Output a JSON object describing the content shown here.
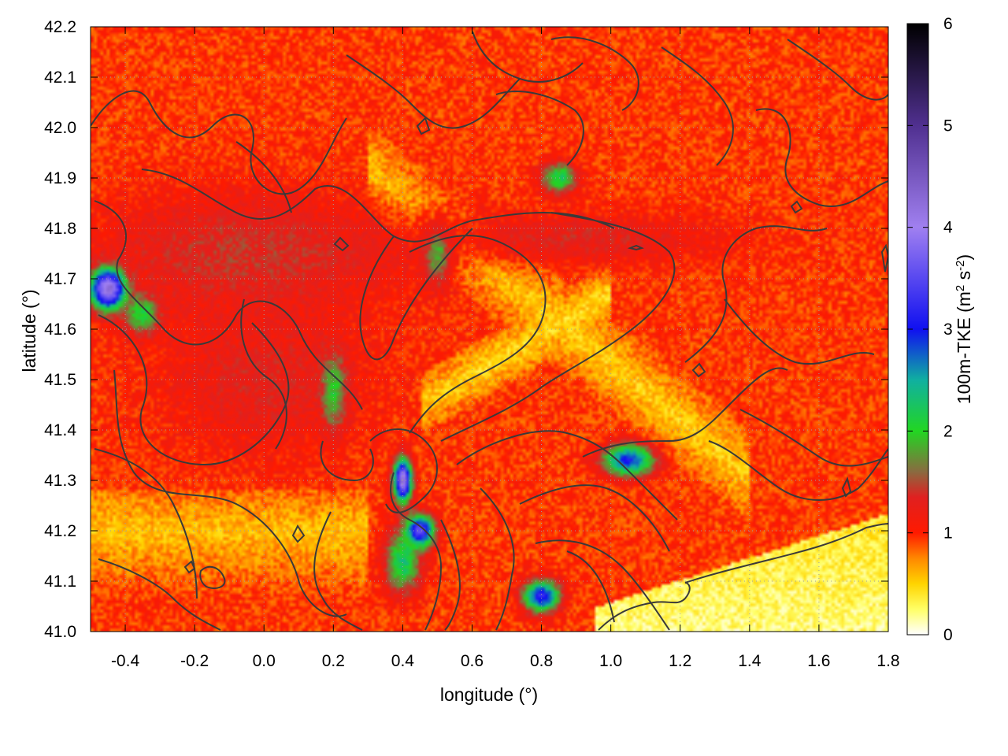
{
  "chart_data": {
    "type": "heatmap",
    "xlabel": "longitude (°)",
    "ylabel": "latitude (°)",
    "xlim": [
      -0.5,
      1.8
    ],
    "ylim": [
      41.0,
      42.2
    ],
    "x_ticks": [
      -0.4,
      -0.2,
      0.0,
      0.2,
      0.4,
      0.6,
      0.8,
      1.0,
      1.2,
      1.4,
      1.6,
      1.8
    ],
    "x_tick_labels": [
      "-0.4",
      "-0.2",
      "0.0",
      "0.2",
      "0.4",
      "0.6",
      "0.8",
      "1.0",
      "1.2",
      "1.4",
      "1.6",
      "1.8"
    ],
    "y_ticks": [
      41.0,
      41.1,
      41.2,
      41.3,
      41.4,
      41.5,
      41.6,
      41.7,
      41.8,
      41.9,
      42.0,
      42.1,
      42.2
    ],
    "y_tick_labels": [
      "41.0",
      "41.1",
      "41.2",
      "41.3",
      "41.4",
      "41.5",
      "41.6",
      "41.7",
      "41.8",
      "41.9",
      "42.0",
      "42.1",
      "42.2"
    ],
    "grid": true,
    "colorbar": {
      "label_parts": [
        "100m-TKE (m",
        "2",
        " s",
        "-2",
        ")"
      ],
      "range": [
        0,
        6
      ],
      "ticks": [
        0,
        1,
        2,
        3,
        4,
        5,
        6
      ],
      "tick_labels": [
        "0",
        "1",
        "2",
        "3",
        "4",
        "5",
        "6"
      ],
      "stops": [
        {
          "v": 0.0,
          "color": "#ffffff"
        },
        {
          "v": 0.25,
          "color": "#ffff66"
        },
        {
          "v": 0.5,
          "color": "#ffd400"
        },
        {
          "v": 0.75,
          "color": "#ff8800"
        },
        {
          "v": 1.0,
          "color": "#ff1a00"
        },
        {
          "v": 1.35,
          "color": "#e02020"
        },
        {
          "v": 1.6,
          "color": "#8a6a40"
        },
        {
          "v": 2.0,
          "color": "#22d622"
        },
        {
          "v": 2.5,
          "color": "#10b0a0"
        },
        {
          "v": 3.0,
          "color": "#1010f0"
        },
        {
          "v": 4.0,
          "color": "#a080f0"
        },
        {
          "v": 5.0,
          "color": "#503090"
        },
        {
          "v": 6.0,
          "color": "#000000"
        }
      ]
    },
    "field_features": [
      {
        "lon": -0.45,
        "lat": 41.68,
        "tke": 4.3,
        "spread_lon": 0.05,
        "spread_lat": 0.04
      },
      {
        "lon": -0.35,
        "lat": 41.63,
        "tke": 2.1,
        "spread_lon": 0.05,
        "spread_lat": 0.04
      },
      {
        "lon": 0.4,
        "lat": 41.3,
        "tke": 4.3,
        "spread_lon": 0.025,
        "spread_lat": 0.04
      },
      {
        "lon": 0.45,
        "lat": 41.2,
        "tke": 3.6,
        "spread_lon": 0.04,
        "spread_lat": 0.03
      },
      {
        "lon": 0.4,
        "lat": 41.14,
        "tke": 2.3,
        "spread_lon": 0.05,
        "spread_lat": 0.06
      },
      {
        "lon": 0.8,
        "lat": 41.07,
        "tke": 3.2,
        "spread_lon": 0.05,
        "spread_lat": 0.03
      },
      {
        "lon": 1.05,
        "lat": 41.34,
        "tke": 3.0,
        "spread_lon": 0.07,
        "spread_lat": 0.03
      },
      {
        "lon": 0.2,
        "lat": 41.48,
        "tke": 2.0,
        "spread_lon": 0.04,
        "spread_lat": 0.08
      },
      {
        "lon": 0.5,
        "lat": 41.75,
        "tke": 1.9,
        "spread_lon": 0.04,
        "spread_lat": 0.06
      },
      {
        "lon": 0.85,
        "lat": 41.9,
        "tke": 2.2,
        "spread_lon": 0.05,
        "spread_lat": 0.03
      },
      {
        "lon": -0.05,
        "lat": 41.75,
        "tke": 1.4,
        "spread_lon": 0.45,
        "spread_lat": 0.12
      },
      {
        "lon": 0.9,
        "lat": 41.78,
        "tke": 1.3,
        "spread_lon": 0.45,
        "spread_lat": 0.05
      },
      {
        "lon": 0.0,
        "lat": 41.5,
        "tke": 1.3,
        "spread_lon": 0.3,
        "spread_lat": 0.15
      }
    ]
  }
}
